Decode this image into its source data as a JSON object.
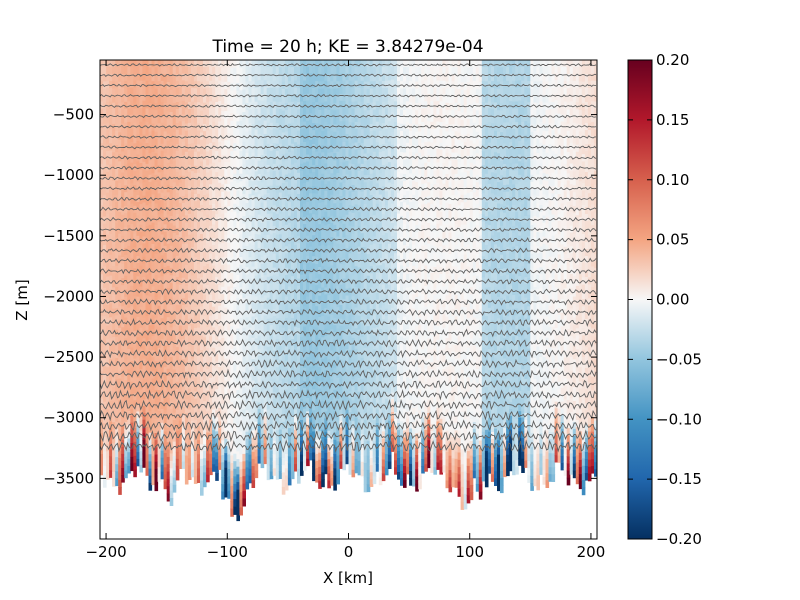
{
  "chart_data": [
    {
      "type": "heatmap",
      "title": "Time = 20 h; KE = 3.84279e-04",
      "xlabel": "X [km]",
      "ylabel": "Z [m]",
      "xlim": [
        -205,
        205
      ],
      "ylim": [
        -4000,
        -50
      ],
      "x_ticks": [
        -200,
        -100,
        0,
        100,
        200
      ],
      "x_tick_labels": [
        "−200",
        "−100",
        "0",
        "100",
        "200"
      ],
      "y_ticks": [
        -500,
        -1000,
        -1500,
        -2000,
        -2500,
        -3000,
        -3500
      ],
      "y_tick_labels": [
        "−500",
        "−1000",
        "−1500",
        "−2000",
        "−2500",
        "−3000",
        "−3500"
      ],
      "colormap": "RdBu_r",
      "clim": [
        -0.2,
        0.2
      ],
      "colorbar_ticks": [
        0.2,
        0.15,
        0.1,
        0.05,
        0.0,
        -0.05,
        -0.1,
        -0.15,
        -0.2
      ],
      "colorbar_tick_labels": [
        "0.20",
        "0.15",
        "0.10",
        "0.05",
        "0.00",
        "−0.05",
        "−0.10",
        "−0.15",
        "−0.20"
      ],
      "overlay": "isopycnal contours (grey)",
      "bottom_depth_approx": [
        -3200,
        -3650
      ],
      "grid": false
    }
  ]
}
